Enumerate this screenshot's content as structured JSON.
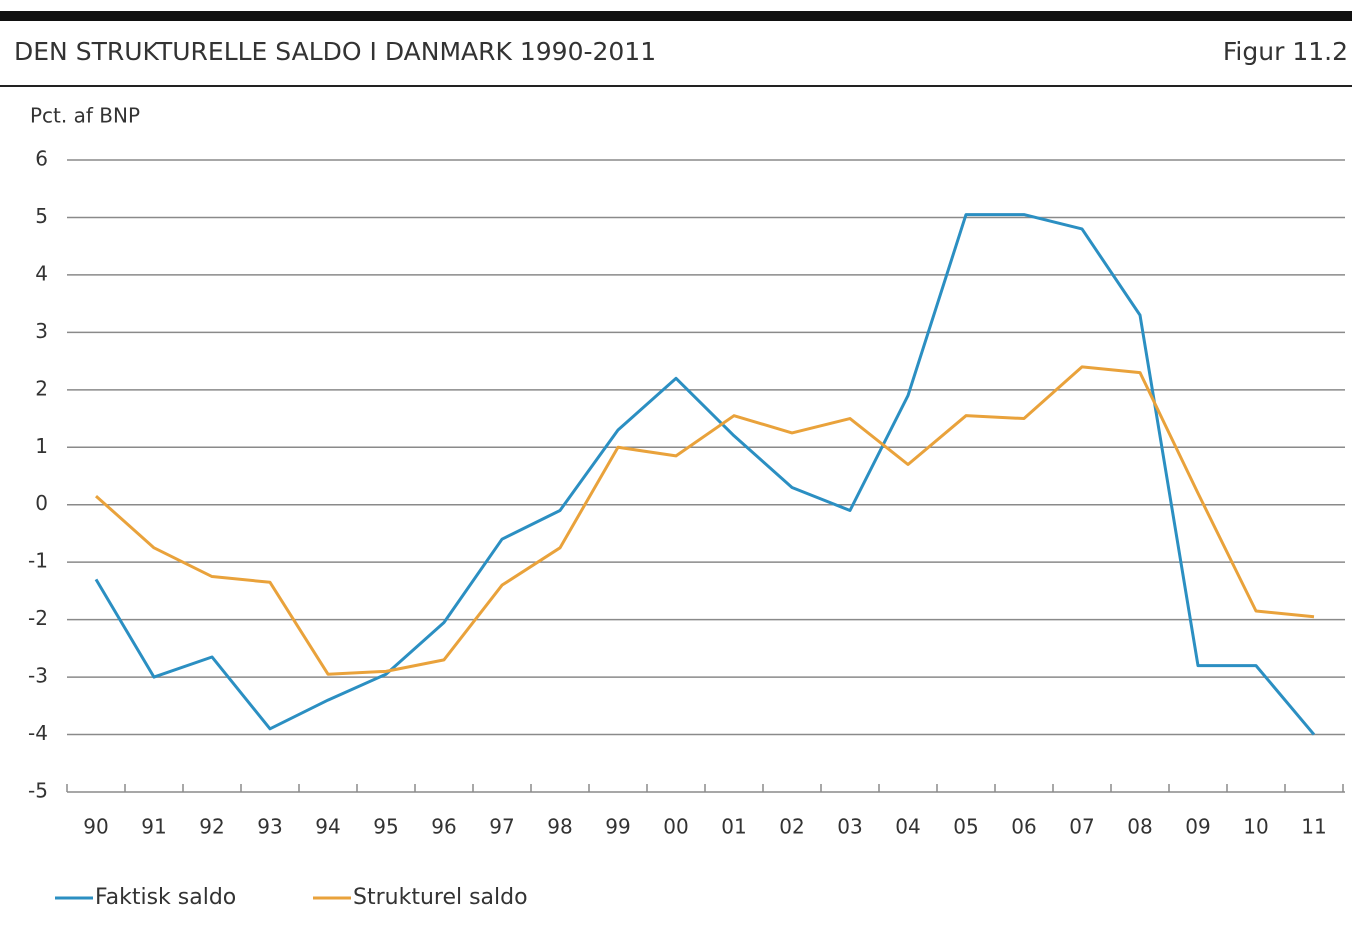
{
  "chart_data": {
    "type": "line",
    "title": "DEN STRUKTURELLE SALDO I DANMARK 1990-2011",
    "figure_label": "Figur 11.2",
    "y_label": "Pct. af BNP",
    "categories": [
      "90",
      "91",
      "92",
      "93",
      "94",
      "95",
      "96",
      "97",
      "98",
      "99",
      "00",
      "01",
      "02",
      "03",
      "04",
      "05",
      "06",
      "07",
      "08",
      "09",
      "10",
      "11"
    ],
    "series": [
      {
        "name": "Faktisk saldo",
        "color": "#2b8fc2",
        "values": [
          -1.3,
          -3.0,
          -2.65,
          -3.9,
          -3.4,
          -2.95,
          -2.05,
          -0.6,
          -0.1,
          1.3,
          2.2,
          1.2,
          0.3,
          -0.1,
          1.9,
          5.05,
          5.05,
          4.8,
          3.3,
          -2.8,
          -2.8,
          -4.0
        ]
      },
      {
        "name": "Strukturel saldo",
        "color": "#e9a23b",
        "values": [
          0.15,
          -0.75,
          -1.25,
          -1.35,
          -2.95,
          -2.9,
          -2.7,
          -1.4,
          -0.75,
          1.0,
          0.85,
          1.55,
          1.25,
          1.5,
          0.7,
          1.55,
          1.5,
          2.4,
          2.3,
          0.2,
          -1.85,
          -1.95
        ]
      }
    ],
    "ylim": [
      -5,
      6
    ],
    "yticks": [
      -5,
      -4,
      -3,
      -2,
      -1,
      0,
      1,
      2,
      3,
      4,
      5,
      6
    ],
    "grid": true
  }
}
